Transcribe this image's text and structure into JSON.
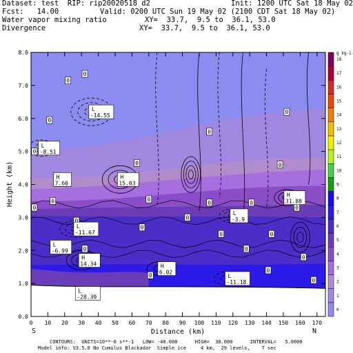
{
  "header": {
    "dataset": "Dataset: test  RIP: rip20020518 d2",
    "init": "Init: 1200 UTC Sat 18 May 02",
    "fcst": "Fcst:   14.00",
    "valid": "Valid: 0200 UTC Sun 19 May 02 (2100 CDT Sat 18 May 02)",
    "field1": "Water vapor mixing ratio",
    "xy1": "XY=  33.7,  9.5 to  36.1, 53.0",
    "field2": "Divergence",
    "xy2": "XY=  33.7,  9.5 to  36.1, 53.0"
  },
  "footer": {
    "contours": "CONTOURS:  UNITS=10**-6 s**-1   LOW= -40.000      HIGH=  30.000      INTERVAL=   5.0000",
    "model": "Model info: V3.5.0 No Cumulus Blackadar  Simple ice     4 km,  29 levels,    7 sec"
  },
  "chart_data": {
    "type": "heatmap",
    "xlabel": "Distance (km)",
    "ylabel": "Height (km)",
    "xlim": [
      0,
      175
    ],
    "ylim": [
      0,
      8
    ],
    "x_ticks": [
      "0",
      "10",
      "20",
      "30",
      "40",
      "50",
      "60",
      "70",
      "80",
      "90",
      "100",
      "110",
      "120",
      "130",
      "140",
      "150",
      "160",
      "170"
    ],
    "y_ticks": [
      "0.0",
      "1.0",
      "2.0",
      "3.0",
      "4.0",
      "5.0",
      "6.0",
      "7.0",
      "8.0"
    ],
    "endpoints": {
      "left": "S",
      "right": "N"
    },
    "colorbar": {
      "unit": "g kg-1",
      "levels": [
        0,
        1,
        2,
        3,
        4,
        5,
        6,
        7,
        8,
        9,
        10,
        11,
        12,
        13,
        14,
        15,
        16,
        17,
        18
      ],
      "colors": [
        "#8c8cf0",
        "#a087e0",
        "#b18ccc",
        "#a76ee0",
        "#8b4ec8",
        "#6a3cb8",
        "#4b2ec8",
        "#2b1ae8",
        "#1a0ff4",
        "#1a9a1a",
        "#45d345",
        "#b8f020",
        "#f0f000",
        "#f0c000",
        "#f08000",
        "#e84a00",
        "#d42a2a",
        "#b0003a",
        "#800060"
      ]
    },
    "contour_labels": [
      {
        "text": "0",
        "x": 22,
        "y": 7.15
      },
      {
        "text": "0",
        "x": 32,
        "y": 7.35
      },
      {
        "text": "0",
        "x": 11,
        "y": 5.95
      },
      {
        "text": "0",
        "x": 2,
        "y": 5.0
      },
      {
        "text": "0",
        "x": 106,
        "y": 5.6
      },
      {
        "text": "0",
        "x": 152,
        "y": 6.2
      },
      {
        "text": "0",
        "x": 2,
        "y": 3.3
      },
      {
        "text": "0",
        "x": 63,
        "y": 4.65
      },
      {
        "text": "0",
        "x": 148,
        "y": 4.6
      },
      {
        "text": "0",
        "x": 13,
        "y": 3.5
      },
      {
        "text": "0",
        "x": 70,
        "y": 3.55
      },
      {
        "text": "0",
        "x": 106,
        "y": 3.45
      },
      {
        "text": "0",
        "x": 131,
        "y": 3.45
      },
      {
        "text": "0",
        "x": 27,
        "y": 2.9
      },
      {
        "text": "0",
        "x": 113,
        "y": 2.5
      },
      {
        "text": "0",
        "x": 143,
        "y": 2.5
      },
      {
        "text": "0",
        "x": 32,
        "y": 2.05
      },
      {
        "text": "0",
        "x": 128,
        "y": 2.05
      },
      {
        "text": "0",
        "x": 162,
        "y": 1.8
      },
      {
        "text": "0",
        "x": 66,
        "y": 2.7
      },
      {
        "text": "0",
        "x": 93,
        "y": 3.0
      },
      {
        "text": "0",
        "x": 158,
        "y": 3.3
      },
      {
        "text": "0",
        "x": 141,
        "y": 1.4
      },
      {
        "text": "0",
        "x": 71,
        "y": 1.25
      },
      {
        "text": "0",
        "x": 168,
        "y": 1.1
      }
    ],
    "extrema": [
      {
        "kind": "L",
        "value": "-14.55",
        "x": 36,
        "y": 6.2
      },
      {
        "kind": "L",
        "value": "-8.51",
        "x": 6,
        "y": 5.1
      },
      {
        "kind": "H",
        "value": "7.60",
        "x": 15,
        "y": 4.15
      },
      {
        "kind": "H",
        "value": "15.03",
        "x": 53,
        "y": 4.15
      },
      {
        "kind": "H",
        "value": "31.88",
        "x": 152,
        "y": 3.6
      },
      {
        "kind": "L",
        "value": "-11.67",
        "x": 27,
        "y": 2.65
      },
      {
        "kind": "L",
        "value": "-6.99",
        "x": 13,
        "y": 2.1
      },
      {
        "kind": "H",
        "value": "14.34",
        "x": 30,
        "y": 1.7
      },
      {
        "kind": "H",
        "value": "6.02",
        "x": 77,
        "y": 1.45
      },
      {
        "kind": "L",
        "value": "-11.18",
        "x": 117,
        "y": 1.15
      },
      {
        "kind": "L",
        "value": "-28.39",
        "x": 28,
        "y": 0.7
      },
      {
        "kind": "L",
        "value": "-3.9",
        "x": 120,
        "y": 3.05
      }
    ]
  }
}
